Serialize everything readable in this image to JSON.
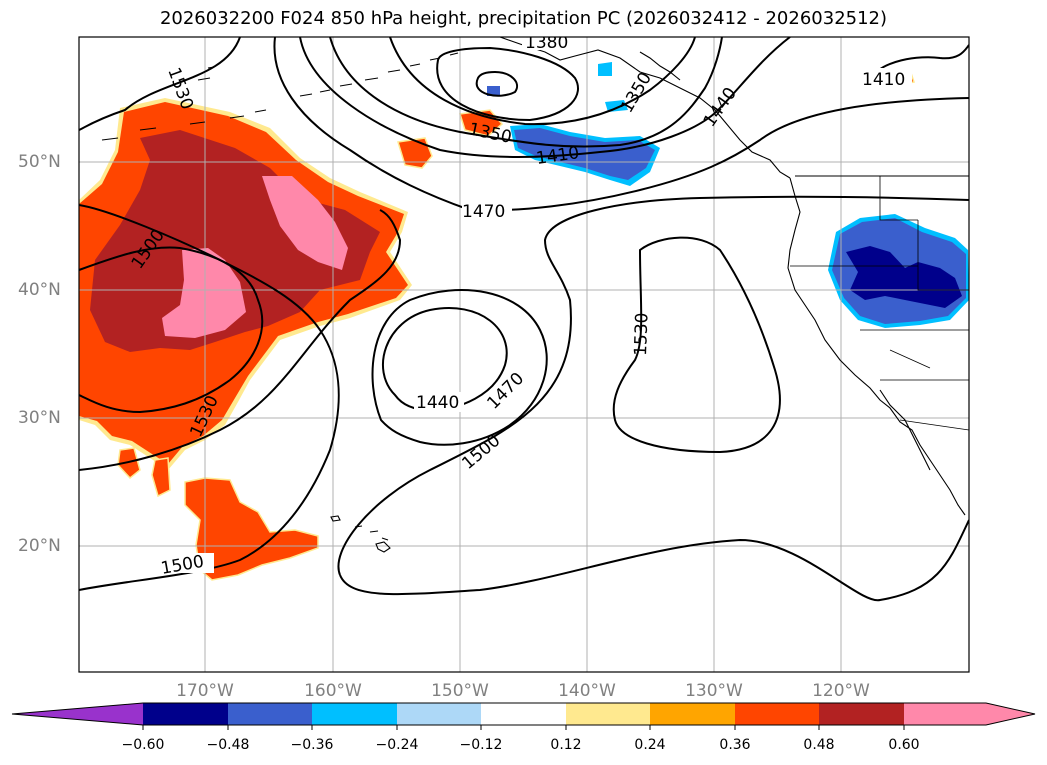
{
  "title": "2026032200 F024 850 hPa height, precipitation PC (2026032412 - 2026032512)",
  "map": {
    "lat_labels": [
      "50°N",
      "40°N",
      "30°N",
      "20°N"
    ],
    "lon_labels": [
      "170°W",
      "160°W",
      "150°W",
      "140°W",
      "130°W",
      "120°W"
    ],
    "contour_labels": [
      "1380",
      "1410",
      "1410",
      "1350",
      "1350",
      "1440",
      "1530",
      "1470",
      "1500",
      "1530",
      "1440",
      "1470",
      "1500",
      "1530",
      "1500"
    ]
  },
  "colorbar": {
    "ticks": [
      "−0.60",
      "−0.48",
      "−0.36",
      "−0.24",
      "−0.12",
      "0.12",
      "0.24",
      "0.36",
      "0.48",
      "0.60"
    ],
    "colors": [
      "#9932cc",
      "#00008b",
      "#3a5fcd",
      "#00bfff",
      "#add8f7",
      "#ffffff",
      "#ffe98f",
      "#ffa500",
      "#ff4500",
      "#b22222",
      "#ff88aa"
    ]
  },
  "colors": {
    "land_outline": "#000000",
    "grid": "#b0b0b0",
    "neg_precip_dark": "#00008b",
    "neg_precip_mid": "#3a5fcd",
    "neg_precip_light": "#00bfff",
    "pos_precip_orange": "#ff4500",
    "pos_precip_red": "#b22222",
    "pos_precip_pink": "#ff88aa"
  }
}
